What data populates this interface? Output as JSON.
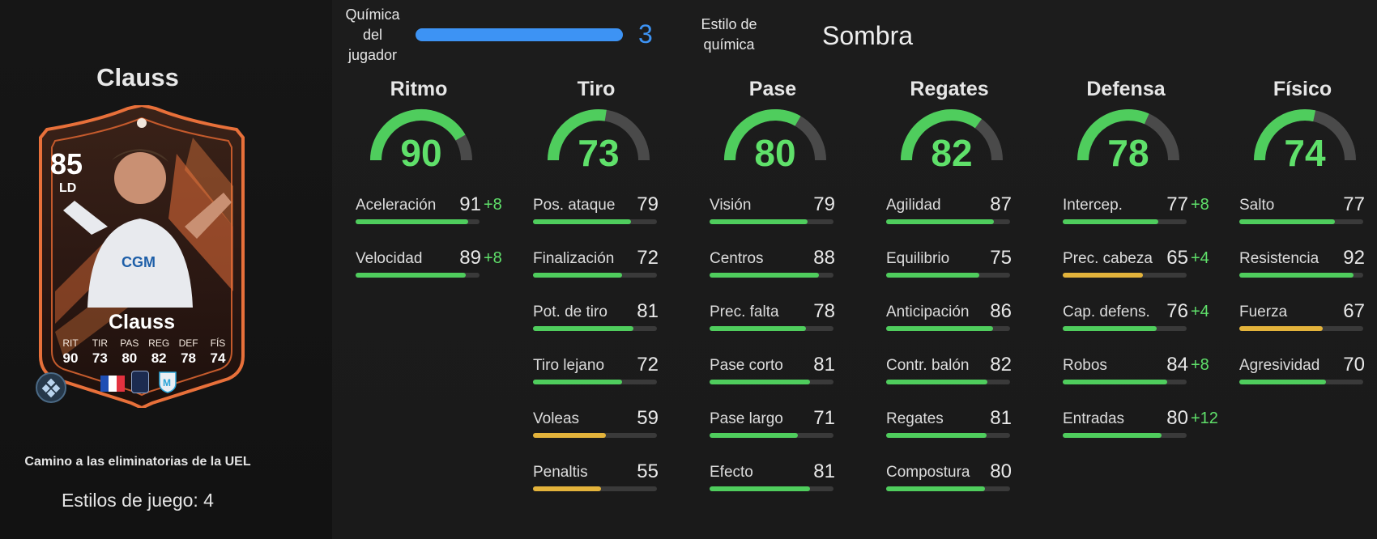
{
  "player": {
    "name": "Clauss",
    "rating": "85",
    "position": "LD",
    "card_name": "Clauss",
    "mini_stats": [
      {
        "label": "RIT",
        "value": "90"
      },
      {
        "label": "TIR",
        "value": "73"
      },
      {
        "label": "PAS",
        "value": "80"
      },
      {
        "label": "REG",
        "value": "82"
      },
      {
        "label": "DEF",
        "value": "78"
      },
      {
        "label": "FÍS",
        "value": "74"
      }
    ],
    "promo": "Camino a las eliminatorias de la UEL",
    "playstyles": "Estilos de juego: 4",
    "colors": {
      "card_orange": "#e8703a",
      "card_dark": "#2a1712",
      "flag_blue": "#1f4fb4",
      "flag_red": "#e3323f"
    }
  },
  "chemistry": {
    "label": "Química del jugador",
    "value": "3",
    "fill_fraction": 1.0,
    "style_label": "Estilo de química",
    "style_value": "Sombra",
    "color": "#3d93f4"
  },
  "colors": {
    "high": "#4fcd5d",
    "mid": "#e3b33b",
    "track": "#3a3a3a",
    "gauge_bg": "#4a4a4a"
  },
  "categories": [
    {
      "title": "Ritmo",
      "value": "90",
      "stats": [
        {
          "name": "Aceleración",
          "value": "91",
          "boost": "+8"
        },
        {
          "name": "Velocidad",
          "value": "89",
          "boost": "+8"
        }
      ]
    },
    {
      "title": "Tiro",
      "value": "73",
      "stats": [
        {
          "name": "Pos. ataque",
          "value": "79",
          "boost": ""
        },
        {
          "name": "Finalización",
          "value": "72",
          "boost": ""
        },
        {
          "name": "Pot. de tiro",
          "value": "81",
          "boost": ""
        },
        {
          "name": "Tiro lejano",
          "value": "72",
          "boost": ""
        },
        {
          "name": "Voleas",
          "value": "59",
          "boost": ""
        },
        {
          "name": "Penaltis",
          "value": "55",
          "boost": ""
        }
      ]
    },
    {
      "title": "Pase",
      "value": "80",
      "stats": [
        {
          "name": "Visión",
          "value": "79",
          "boost": ""
        },
        {
          "name": "Centros",
          "value": "88",
          "boost": ""
        },
        {
          "name": "Prec. falta",
          "value": "78",
          "boost": ""
        },
        {
          "name": "Pase corto",
          "value": "81",
          "boost": ""
        },
        {
          "name": "Pase largo",
          "value": "71",
          "boost": ""
        },
        {
          "name": "Efecto",
          "value": "81",
          "boost": ""
        }
      ]
    },
    {
      "title": "Regates",
      "value": "82",
      "stats": [
        {
          "name": "Agilidad",
          "value": "87",
          "boost": ""
        },
        {
          "name": "Equilibrio",
          "value": "75",
          "boost": ""
        },
        {
          "name": "Anticipación",
          "value": "86",
          "boost": ""
        },
        {
          "name": "Contr. balón",
          "value": "82",
          "boost": ""
        },
        {
          "name": "Regates",
          "value": "81",
          "boost": ""
        },
        {
          "name": "Compostura",
          "value": "80",
          "boost": ""
        }
      ]
    },
    {
      "title": "Defensa",
      "value": "78",
      "stats": [
        {
          "name": "Intercep.",
          "value": "77",
          "boost": "+8"
        },
        {
          "name": "Prec. cabeza",
          "value": "65",
          "boost": "+4"
        },
        {
          "name": "Cap. defens.",
          "value": "76",
          "boost": "+4"
        },
        {
          "name": "Robos",
          "value": "84",
          "boost": "+8"
        },
        {
          "name": "Entradas",
          "value": "80",
          "boost": "+12"
        }
      ]
    },
    {
      "title": "Físico",
      "value": "74",
      "stats": [
        {
          "name": "Salto",
          "value": "77",
          "boost": ""
        },
        {
          "name": "Resistencia",
          "value": "92",
          "boost": ""
        },
        {
          "name": "Fuerza",
          "value": "67",
          "boost": ""
        },
        {
          "name": "Agresividad",
          "value": "70",
          "boost": ""
        }
      ]
    }
  ]
}
